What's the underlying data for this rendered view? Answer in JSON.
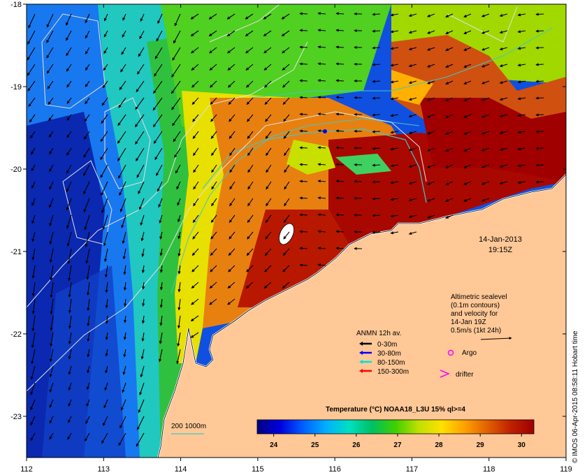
{
  "map": {
    "date": "14-Jan-2013",
    "time": "19:15Z",
    "lon_range": [
      112,
      119
    ],
    "lat_range": [
      -23.5,
      -18
    ],
    "lon_ticks": [
      "112",
      "113",
      "114",
      "115",
      "116",
      "117",
      "118",
      "119"
    ],
    "lat_ticks": [
      "-18",
      "-19",
      "-20",
      "-21",
      "-22",
      "-23"
    ],
    "land_color": "#ffc896",
    "altimetry_note": [
      "Altimetric sealevel",
      "(0.1m contours)",
      "and velocity for",
      "14-Jan 19Z"
    ],
    "scale_arrow_label": "0.5m/s (1kt 24h)",
    "credit": "© IMOS 06-Apr-2015 08:58:11 Hobart time",
    "isobath_label": "200  1000m",
    "isobath_color": "#40c8c8"
  },
  "legend": {
    "title": "ANMN 12h av.",
    "items": [
      {
        "label": "0-30m",
        "color": "#000000"
      },
      {
        "label": "30-80m",
        "color": "#0000ff"
      },
      {
        "label": "80-150m",
        "color": "#00e0e0"
      },
      {
        "label": "150-300m",
        "color": "#ff0000"
      }
    ],
    "argo_label": "Argo",
    "argo_color": "#ff00ff",
    "drifter_label": "drifter",
    "drifter_color": "#ff00ff"
  },
  "colorbar": {
    "title": "Temperature (°C) NOAA18_L3U 15% ql>=4",
    "ticks": [
      "24",
      "25",
      "26",
      "27",
      "28",
      "29",
      "30"
    ],
    "colors": [
      "#000080",
      "#0000e0",
      "#0060ff",
      "#00b0ff",
      "#00e0c0",
      "#00c060",
      "#40d000",
      "#c0e000",
      "#ffe000",
      "#ffa000",
      "#e06000",
      "#c02000",
      "#a00000"
    ]
  }
}
